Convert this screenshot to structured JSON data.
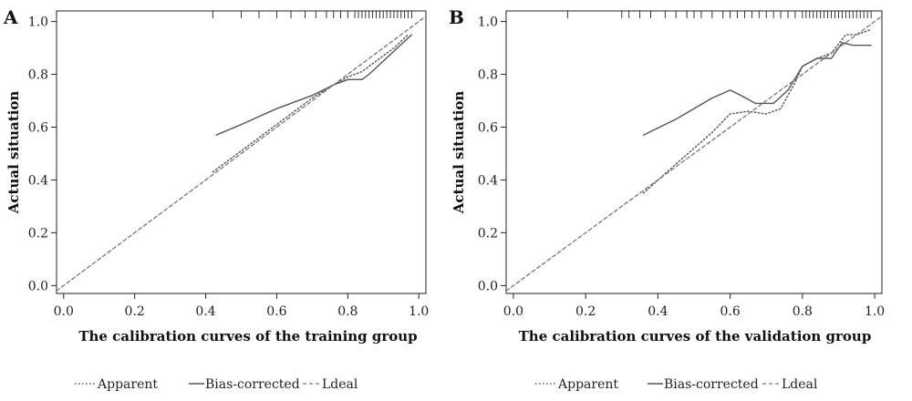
{
  "chart_data": [
    {
      "type": "line",
      "panel": "A",
      "xlabel": "The calibration curves of the training group",
      "ylabel": "Actual situation",
      "xlim": [
        -0.02,
        1.02
      ],
      "ylim": [
        -0.03,
        1.04
      ],
      "xticks": [
        0.0,
        0.2,
        0.4,
        0.6,
        0.8,
        1.0
      ],
      "xtick_labels": [
        "0.0",
        "0.2",
        "0.4",
        "0.6",
        "0.8",
        "1.0"
      ],
      "yticks": [
        0.0,
        0.2,
        0.4,
        0.6,
        0.8,
        1.0
      ],
      "ytick_labels": [
        "0.0",
        "0.2",
        "0.4",
        "0.6",
        "0.8",
        "1.0"
      ],
      "series": [
        {
          "name": "Apparent",
          "style": "dotted",
          "x": [
            0.42,
            0.5,
            0.6,
            0.7,
            0.76,
            0.8,
            0.84,
            0.88,
            0.93,
            0.97
          ],
          "y": [
            0.43,
            0.51,
            0.61,
            0.71,
            0.76,
            0.79,
            0.81,
            0.85,
            0.9,
            0.95
          ]
        },
        {
          "name": "Bias-corrected",
          "style": "solid",
          "x": [
            0.43,
            0.5,
            0.6,
            0.7,
            0.76,
            0.8,
            0.84,
            0.86,
            0.9,
            0.94,
            0.98
          ],
          "y": [
            0.57,
            0.61,
            0.67,
            0.72,
            0.76,
            0.78,
            0.78,
            0.8,
            0.85,
            0.9,
            0.95
          ]
        },
        {
          "name": "Ldeal",
          "style": "dashed",
          "x": [
            -0.02,
            1.02
          ],
          "y": [
            -0.02,
            1.02
          ]
        }
      ],
      "rug_x": [
        0.42,
        0.5,
        0.55,
        0.6,
        0.64,
        0.68,
        0.71,
        0.74,
        0.76,
        0.78,
        0.8,
        0.82,
        0.83,
        0.84,
        0.85,
        0.86,
        0.87,
        0.88,
        0.89,
        0.9,
        0.91,
        0.92,
        0.93,
        0.94,
        0.95,
        0.96,
        0.97,
        0.98
      ]
    },
    {
      "type": "line",
      "panel": "B",
      "xlabel": "The calibration curves of the validation group",
      "ylabel": "Actual situation",
      "xlim": [
        -0.02,
        1.02
      ],
      "ylim": [
        -0.03,
        1.04
      ],
      "xticks": [
        0.0,
        0.2,
        0.4,
        0.6,
        0.8,
        1.0
      ],
      "xtick_labels": [
        "0.0",
        "0.2",
        "0.4",
        "0.6",
        "0.8",
        "1.0"
      ],
      "yticks": [
        0.0,
        0.2,
        0.4,
        0.6,
        0.8,
        1.0
      ],
      "ytick_labels": [
        "0.0",
        "0.2",
        "0.4",
        "0.6",
        "0.8",
        "1.0"
      ],
      "series": [
        {
          "name": "Apparent",
          "style": "dotted",
          "x": [
            0.36,
            0.45,
            0.55,
            0.6,
            0.65,
            0.7,
            0.74,
            0.78,
            0.8,
            0.84,
            0.88,
            0.92,
            0.95,
            0.99
          ],
          "y": [
            0.35,
            0.46,
            0.58,
            0.65,
            0.66,
            0.65,
            0.67,
            0.77,
            0.83,
            0.86,
            0.88,
            0.95,
            0.95,
            0.97
          ]
        },
        {
          "name": "Bias-corrected",
          "style": "solid",
          "x": [
            0.36,
            0.45,
            0.55,
            0.6,
            0.63,
            0.67,
            0.72,
            0.76,
            0.8,
            0.84,
            0.88,
            0.91,
            0.94,
            0.99
          ],
          "y": [
            0.57,
            0.63,
            0.71,
            0.74,
            0.72,
            0.69,
            0.69,
            0.74,
            0.83,
            0.86,
            0.86,
            0.92,
            0.91,
            0.91
          ]
        },
        {
          "name": "Ldeal",
          "style": "dashed",
          "x": [
            -0.02,
            1.02
          ],
          "y": [
            -0.02,
            1.02
          ]
        }
      ],
      "rug_x": [
        0.15,
        0.3,
        0.32,
        0.35,
        0.38,
        0.42,
        0.45,
        0.48,
        0.5,
        0.52,
        0.55,
        0.58,
        0.6,
        0.62,
        0.64,
        0.66,
        0.68,
        0.7,
        0.72,
        0.74,
        0.76,
        0.78,
        0.8,
        0.81,
        0.82,
        0.83,
        0.84,
        0.85,
        0.86,
        0.87,
        0.88,
        0.89,
        0.9,
        0.91,
        0.92,
        0.93,
        0.94,
        0.95,
        0.96,
        0.97,
        0.98,
        0.99
      ]
    }
  ],
  "legend": {
    "items": [
      {
        "label": "Apparent",
        "style": "dotted"
      },
      {
        "label": "Bias-corrected",
        "style": "solid"
      },
      {
        "label": "Ldeal",
        "style": "dashed"
      }
    ]
  },
  "colors": {
    "line": "#555555",
    "axis": "#222222",
    "ideal": "#777777"
  }
}
